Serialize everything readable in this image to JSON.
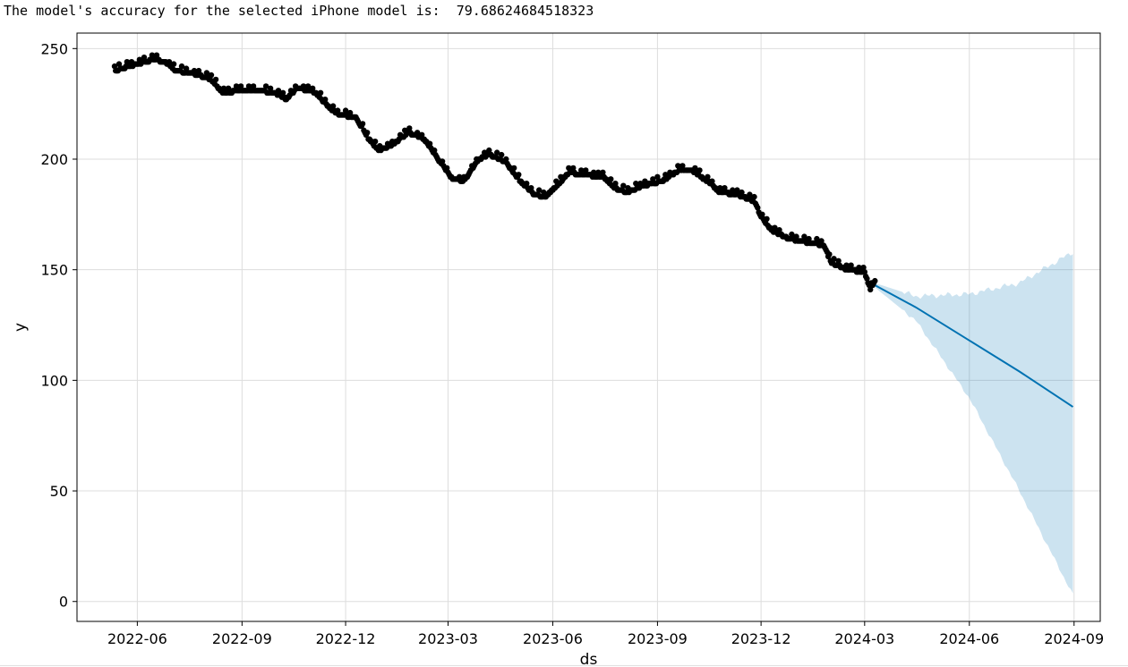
{
  "output": {
    "text": "The model's accuracy for the selected iPhone model is:  79.68624684518323"
  },
  "chart_data": {
    "type": "scatter",
    "title": "",
    "xlabel": "ds",
    "ylabel": "y",
    "xlim": [
      "2022-04-09",
      "2024-09-24"
    ],
    "ylim": [
      -9,
      257
    ],
    "grid": true,
    "x_ticks": [
      "2022-06",
      "2022-09",
      "2022-12",
      "2023-03",
      "2023-06",
      "2023-09",
      "2023-12",
      "2024-03",
      "2024-06",
      "2024-09"
    ],
    "y_ticks": [
      0,
      50,
      100,
      150,
      200,
      250
    ],
    "colors": {
      "observed": "#000000",
      "forecast_line": "#0072B2",
      "interval_fill": "#0072B2",
      "grid": "#dddddd"
    },
    "observed_keypoints": [
      [
        "2022-05-12",
        240
      ],
      [
        "2022-05-25",
        242
      ],
      [
        "2022-06-15",
        245
      ],
      [
        "2022-06-25",
        244
      ],
      [
        "2022-07-05",
        240
      ],
      [
        "2022-07-25",
        238
      ],
      [
        "2022-08-05",
        236
      ],
      [
        "2022-08-15",
        230
      ],
      [
        "2022-09-01",
        231
      ],
      [
        "2022-09-15",
        231
      ],
      [
        "2022-09-30",
        230
      ],
      [
        "2022-10-10",
        227
      ],
      [
        "2022-10-20",
        232
      ],
      [
        "2022-11-05",
        230
      ],
      [
        "2022-11-15",
        224
      ],
      [
        "2022-11-25",
        220
      ],
      [
        "2022-12-10",
        219
      ],
      [
        "2022-12-20",
        210
      ],
      [
        "2022-12-30",
        204
      ],
      [
        "2023-01-10",
        206
      ],
      [
        "2023-01-25",
        212
      ],
      [
        "2023-02-08",
        209
      ],
      [
        "2023-02-20",
        200
      ],
      [
        "2023-03-05",
        191
      ],
      [
        "2023-03-15",
        190
      ],
      [
        "2023-03-28",
        200
      ],
      [
        "2023-04-06",
        202
      ],
      [
        "2023-04-20",
        199
      ],
      [
        "2023-05-02",
        191
      ],
      [
        "2023-05-15",
        184
      ],
      [
        "2023-05-25",
        183
      ],
      [
        "2023-06-05",
        188
      ],
      [
        "2023-06-15",
        194
      ],
      [
        "2023-06-25",
        193
      ],
      [
        "2023-07-15",
        192
      ],
      [
        "2023-07-25",
        187
      ],
      [
        "2023-08-05",
        185
      ],
      [
        "2023-08-20",
        188
      ],
      [
        "2023-09-05",
        190
      ],
      [
        "2023-09-20",
        195
      ],
      [
        "2023-10-01",
        195
      ],
      [
        "2023-10-15",
        190
      ],
      [
        "2023-10-25",
        185
      ],
      [
        "2023-11-10",
        184
      ],
      [
        "2023-11-25",
        181
      ],
      [
        "2023-12-01",
        174
      ],
      [
        "2023-12-10",
        168
      ],
      [
        "2023-12-25",
        164
      ],
      [
        "2024-01-15",
        162
      ],
      [
        "2024-01-25",
        161
      ],
      [
        "2024-02-01",
        153
      ],
      [
        "2024-02-15",
        150
      ],
      [
        "2024-03-01",
        149
      ],
      [
        "2024-03-06",
        141
      ],
      [
        "2024-03-10",
        145
      ]
    ],
    "forecast": {
      "x": [
        "2024-03-10",
        "2024-04-15",
        "2024-06-01",
        "2024-07-15",
        "2024-08-31"
      ],
      "yhat": [
        143,
        133,
        118,
        104,
        88
      ],
      "yhat_upper": [
        144,
        138,
        139,
        144,
        158
      ],
      "yhat_lower": [
        142,
        127,
        92,
        50,
        3
      ]
    }
  }
}
